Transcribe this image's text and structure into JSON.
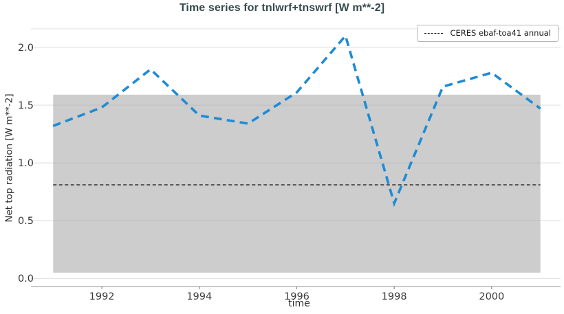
{
  "figure": {
    "title": "Time series for tnlwrf+tnswrf [W m**-2]"
  },
  "axes": {
    "xlabel": "time",
    "ylabel": "Net top radiation [W m**-2]"
  },
  "legend": {
    "entries": [
      {
        "label": "CERES ebaf-toa41 annual",
        "line_style": "dashed",
        "line_color": "#111111"
      }
    ]
  },
  "colors": {
    "title": "#35494e",
    "series_line": "#1f8bd4",
    "reference_line": "#111111",
    "band_fill": "rgba(172,172,172,0.6)",
    "grid": "#dcdcdc",
    "top_spine": "#e2e2e2",
    "axis_spine": "#a9a9a9",
    "tick_mark": "#8a8a8a",
    "tick_label": "#3a3a3a"
  },
  "chart_data": {
    "type": "line",
    "title": "Time series for tnlwrf+tnswrf [W m**-2]",
    "xlabel": "time",
    "ylabel": "Net top radiation [W m**-2]",
    "xlim": [
      1990.7,
      2001.4
    ],
    "ylim": [
      -0.07,
      2.16
    ],
    "xticks": [
      1992,
      1994,
      1996,
      1998,
      2000
    ],
    "yticks": [
      0.0,
      0.5,
      1.0,
      1.5,
      2.0
    ],
    "grid": true,
    "legend_position": "top-right",
    "series": [
      {
        "name": "tnlwrf+tnswrf",
        "style": "dashed",
        "color": "#1f8bd4",
        "x": [
          1991,
          1992,
          1993,
          1994,
          1995,
          1996,
          1997,
          1998,
          1999,
          2000,
          2001
        ],
        "values": [
          1.32,
          1.48,
          1.81,
          1.41,
          1.34,
          1.61,
          2.1,
          0.65,
          1.66,
          1.78,
          1.47
        ]
      }
    ],
    "reference_line": {
      "name": "CERES ebaf-toa41 annual",
      "value": 0.81,
      "style": "dashed",
      "color": "#111111",
      "x_range": [
        1991,
        2001
      ]
    },
    "shaded_band": {
      "x_range": [
        1991,
        2001
      ],
      "y_range": [
        0.05,
        1.59
      ]
    }
  }
}
